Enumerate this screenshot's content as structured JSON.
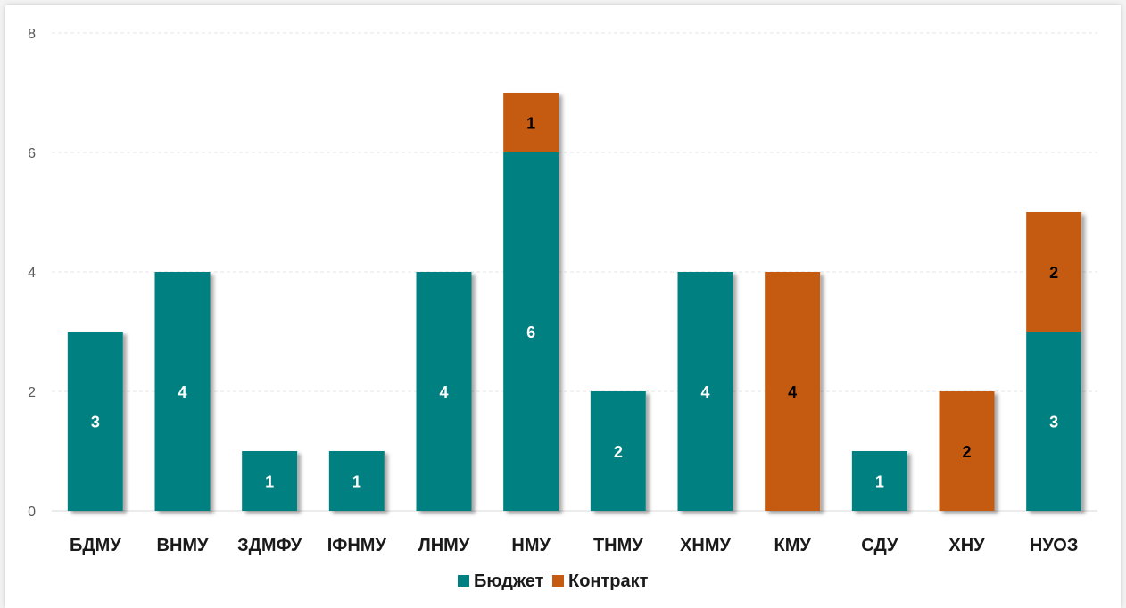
{
  "chart_data": {
    "type": "bar",
    "stacked": true,
    "categories": [
      "БДМУ",
      "ВНМУ",
      "ЗДМФУ",
      "ІФНМУ",
      "ЛНМУ",
      "НМУ",
      "ТНМУ",
      "ХНМУ",
      "КМУ",
      "СДУ",
      "ХНУ",
      "НУОЗ"
    ],
    "series": [
      {
        "name": "Бюджет",
        "color": "#008080",
        "label_color": "#ffffff",
        "values": [
          3,
          4,
          1,
          1,
          4,
          6,
          2,
          4,
          0,
          1,
          0,
          3
        ]
      },
      {
        "name": "Контракт",
        "color": "#c55a11",
        "label_color": "#000000",
        "values": [
          0,
          0,
          0,
          0,
          0,
          1,
          0,
          0,
          4,
          0,
          2,
          2
        ]
      }
    ],
    "ylim": [
      0,
      8
    ],
    "yticks": [
      0,
      2,
      4,
      6,
      8
    ],
    "grid": true,
    "legend": "bottom",
    "title": "",
    "xlabel": "",
    "ylabel": ""
  }
}
